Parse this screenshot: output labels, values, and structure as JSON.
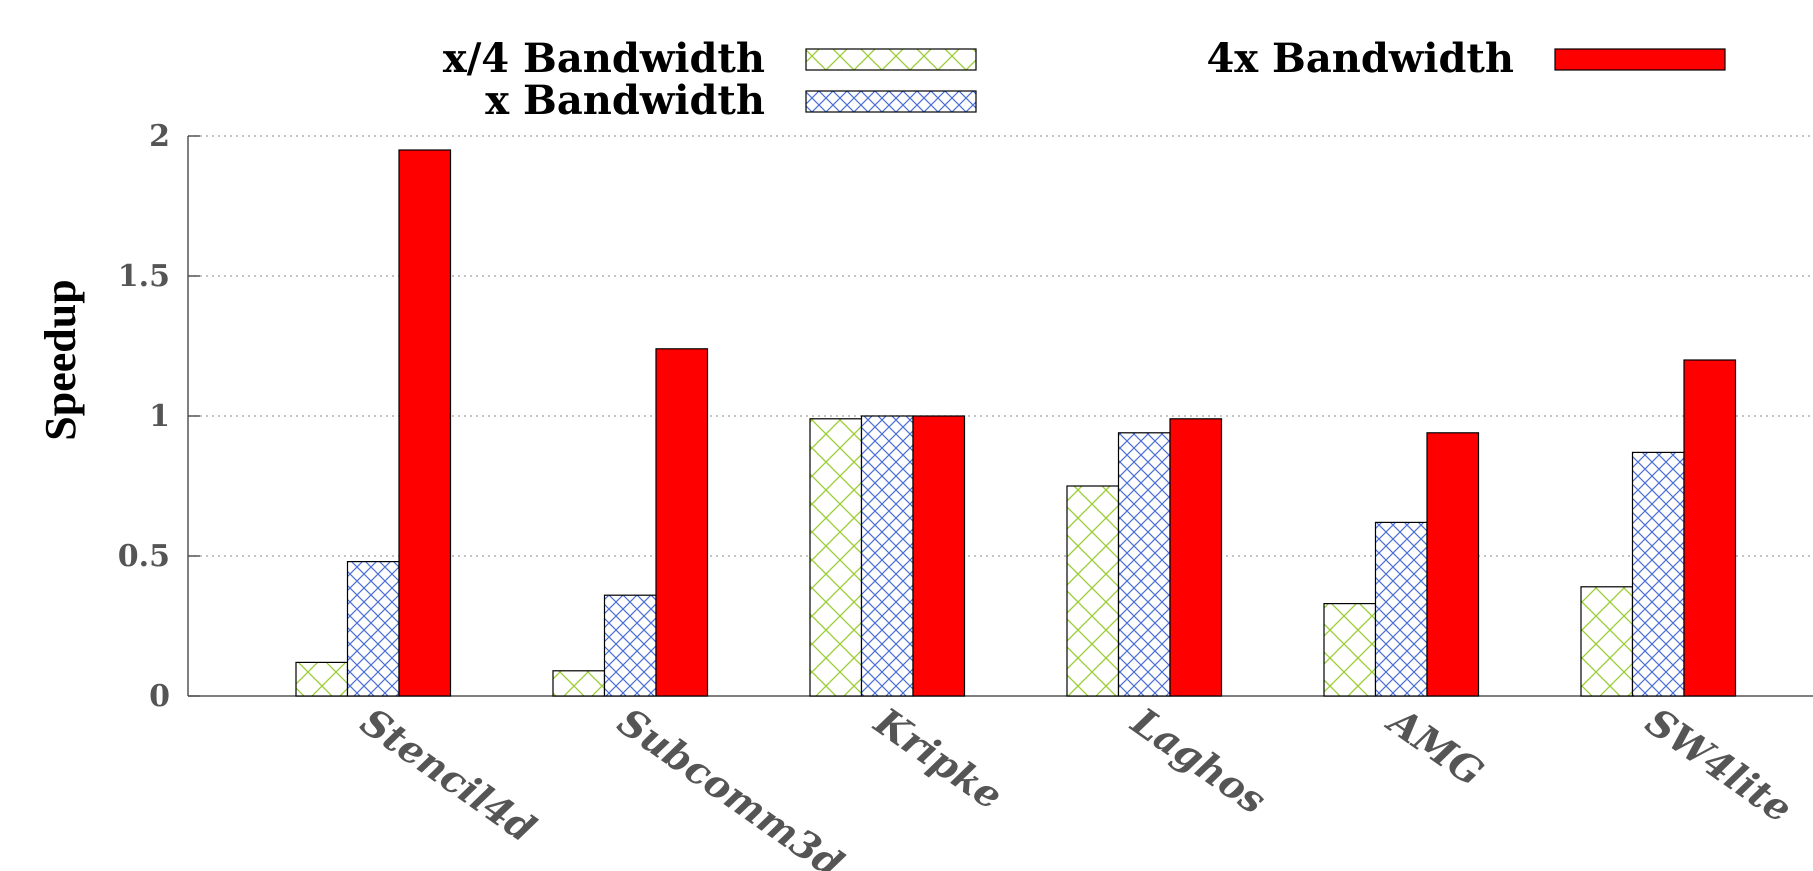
{
  "chart_data": {
    "type": "bar",
    "title": "",
    "xlabel": "",
    "ylabel": "Speedup",
    "ylim": [
      0,
      2
    ],
    "yticks": [
      "0",
      "0.5",
      "1",
      "1.5",
      "2"
    ],
    "grid": true,
    "legend_position": "top",
    "categories": [
      "Stencil4d",
      "Subcomm3d",
      "Kripke",
      "Laghos",
      "AMG",
      "SW4lite"
    ],
    "series": [
      {
        "name": "x/4 Bandwidth",
        "values": [
          0.12,
          0.09,
          0.99,
          0.75,
          0.33,
          0.39
        ],
        "color": "#9acd32",
        "pattern": "crosshatch"
      },
      {
        "name": "x Bandwidth",
        "values": [
          0.48,
          0.36,
          1.0,
          0.94,
          0.62,
          0.87
        ],
        "color": "#4169e1",
        "pattern": "crosshatch-dense"
      },
      {
        "name": "4x Bandwidth",
        "values": [
          1.95,
          1.24,
          1.0,
          0.99,
          0.94,
          1.2
        ],
        "color": "#ff0000",
        "pattern": "solid"
      }
    ]
  }
}
